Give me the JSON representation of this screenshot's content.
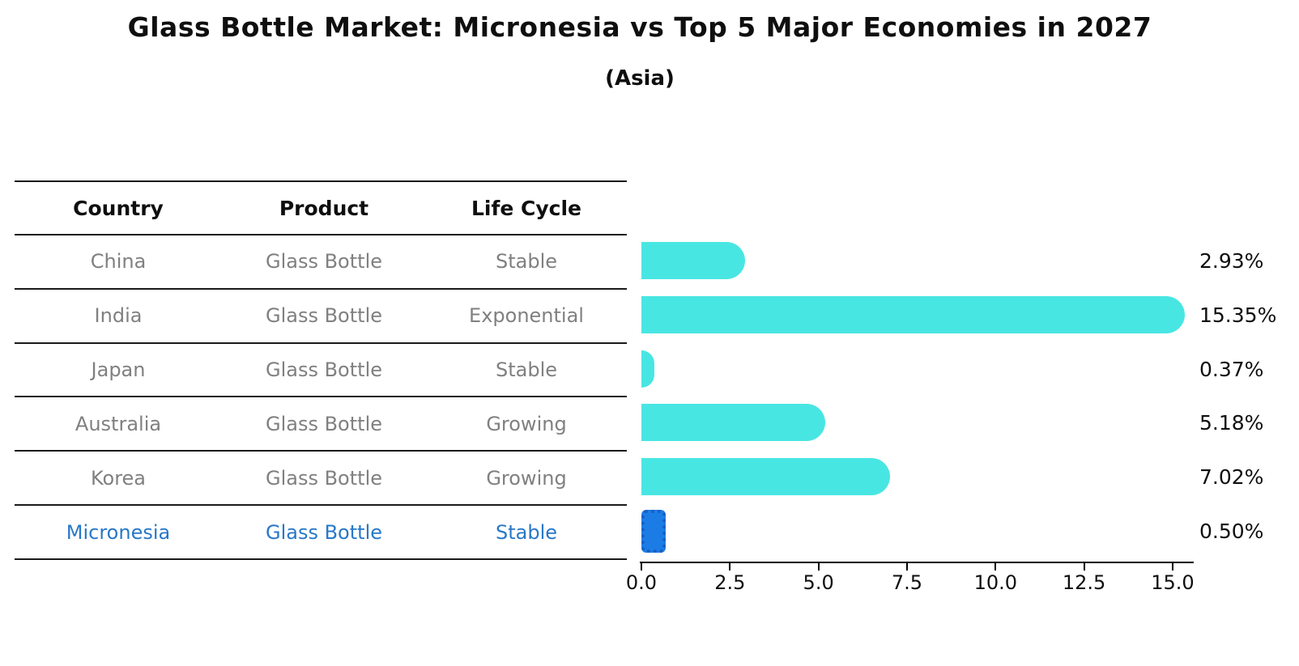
{
  "header": {
    "title": "Glass Bottle Market: Micronesia vs Top 5 Major Economies in 2027",
    "subtitle": "(Asia)"
  },
  "table": {
    "columns": [
      "Country",
      "Product",
      "Life Cycle"
    ],
    "rows": [
      {
        "country": "China",
        "product": "Glass Bottle",
        "life_cycle": "Stable",
        "highlight": false
      },
      {
        "country": "India",
        "product": "Glass Bottle",
        "life_cycle": "Exponential",
        "highlight": false
      },
      {
        "country": "Japan",
        "product": "Glass Bottle",
        "life_cycle": "Stable",
        "highlight": false
      },
      {
        "country": "Australia",
        "product": "Glass Bottle",
        "life_cycle": "Growing",
        "highlight": false
      },
      {
        "country": "Korea",
        "product": "Glass Bottle",
        "life_cycle": "Growing",
        "highlight": false
      },
      {
        "country": "Micronesia",
        "product": "Glass Bottle",
        "life_cycle": "Stable",
        "highlight": true
      }
    ]
  },
  "chart_data": {
    "type": "bar",
    "orientation": "horizontal",
    "title": "Glass Bottle Market: Micronesia vs Top 5 Major Economies in 2027",
    "subtitle": "(Asia)",
    "categories": [
      "China",
      "India",
      "Japan",
      "Australia",
      "Korea",
      "Micronesia"
    ],
    "values": [
      2.93,
      15.35,
      0.37,
      5.18,
      7.02,
      0.5
    ],
    "value_labels": [
      "2.93%",
      "15.35%",
      "0.37%",
      "5.18%",
      "7.02%",
      "0.50%"
    ],
    "x_ticks": [
      0.0,
      2.5,
      5.0,
      7.5,
      10.0,
      12.5,
      15.0
    ],
    "x_tick_labels": [
      "0.0",
      "2.5",
      "5.0",
      "7.5",
      "10.0",
      "12.5",
      "15.0"
    ],
    "xlim": [
      0,
      15.55
    ],
    "highlight_index": 5,
    "legend": null,
    "grid": false
  },
  "colors": {
    "bar_color": "#48e6e3",
    "highlight_fill": "#1b7ce6",
    "highlight_border": "#1a5fc0",
    "highlight_text": "#2878c8",
    "cell_text": "#808080",
    "heading_text": "#0f0f0f"
  }
}
